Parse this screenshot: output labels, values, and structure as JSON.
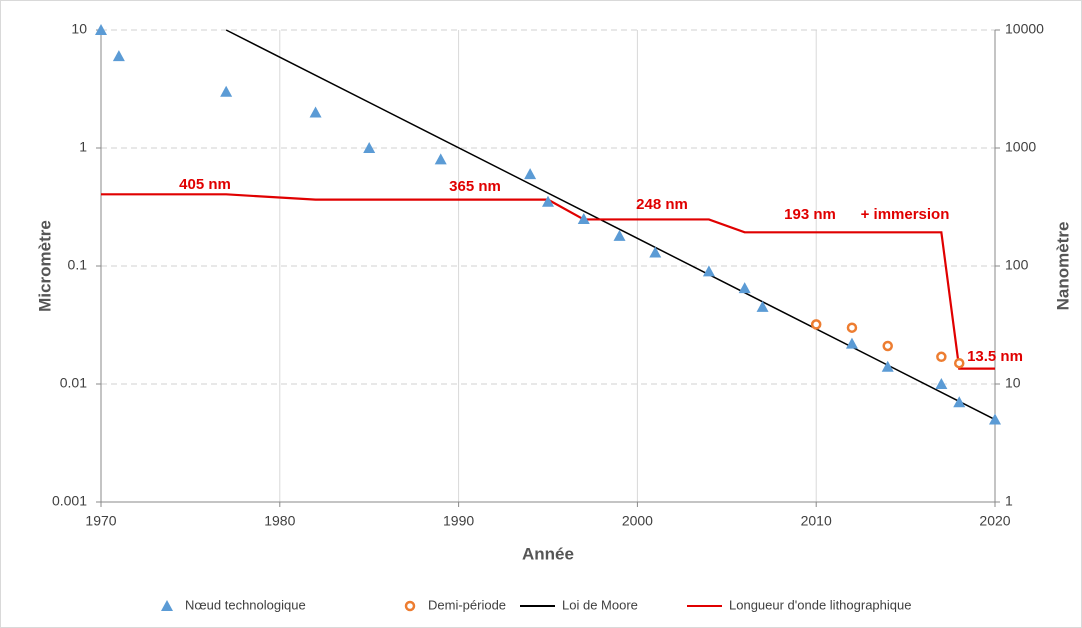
{
  "chart_data": {
    "type": "scatter",
    "xlabel": "Année",
    "ylabel": "Micromètre",
    "y2label": "Nanomètre",
    "xlim": [
      1970,
      2020
    ],
    "xticks": [
      1970,
      1980,
      1990,
      2000,
      2010,
      2020
    ],
    "ylim": [
      0.001,
      10
    ],
    "yticks": [
      10,
      1,
      0.1,
      0.01,
      0.001
    ],
    "ylog": true,
    "y2lim": [
      1,
      10000
    ],
    "y2ticks": [
      10000,
      1000,
      100,
      10,
      1
    ],
    "y2log": true,
    "grid": true,
    "legend": "bottom",
    "series": [
      {
        "name": "Nœud technologique",
        "color": "#5b9bd5",
        "mode": "triangle",
        "x": [
          1970,
          1971,
          1977,
          1982,
          1985,
          1989,
          1994,
          1995,
          1997,
          1999,
          2001,
          2004,
          2006,
          2007,
          2012,
          2014,
          2017,
          2018,
          2020
        ],
        "values": [
          10,
          6,
          3,
          2,
          1,
          0.8,
          0.6,
          0.35,
          0.25,
          0.18,
          0.13,
          0.09,
          0.065,
          0.045,
          0.022,
          0.014,
          0.01,
          0.007,
          0.005
        ]
      },
      {
        "name": "Demi-période",
        "color": "#ed7d31",
        "mode": "circle",
        "x": [
          2010,
          2012,
          2014,
          2017,
          2018
        ],
        "values": [
          0.032,
          0.03,
          0.021,
          0.017,
          0.015
        ]
      },
      {
        "name": "Loi de Moore",
        "color": "#000000",
        "mode": "line",
        "x": [
          1977,
          2020
        ],
        "values": [
          10,
          0.005
        ]
      },
      {
        "name": "Longueur d'onde lithographique",
        "color": "#e00000",
        "mode": "line",
        "x": [
          1970,
          1977,
          1982,
          1995,
          1997,
          2004,
          2006,
          2017,
          2018,
          2020
        ],
        "values": [
          0.405,
          0.405,
          0.365,
          0.365,
          0.248,
          0.248,
          0.193,
          0.193,
          0.0135,
          0.0135
        ]
      }
    ],
    "annotations": [
      "405 nm",
      "365 nm",
      "248 nm",
      "193 nm",
      "+ immersion",
      "13.5 nm"
    ]
  }
}
